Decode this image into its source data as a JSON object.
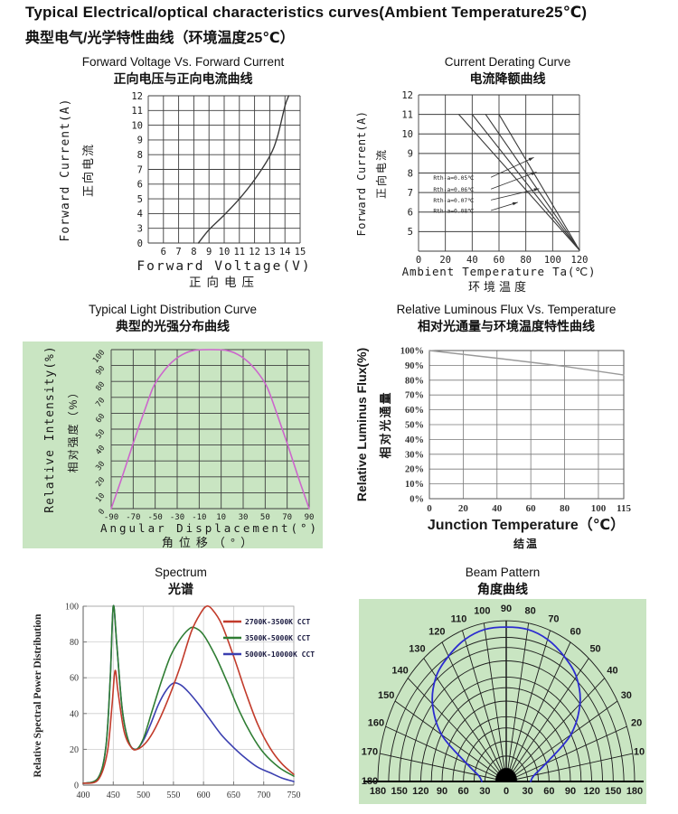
{
  "header": {
    "title_en": "Typical Electrical/optical characteristics curves(Ambient Temperature25℃)",
    "title_zh": "典型电气/光学特性曲线（环境温度25℃）"
  },
  "chart_data": [
    {
      "id": "fv-if",
      "type": "line",
      "title": "Forward Voltage Vs. Forward Current",
      "title_zh": "正向电压与正向电流曲线",
      "xlabel": "Forward Voltage(V)",
      "xlabel_zh": "正向电压",
      "ylabel": "Forward Current(A)",
      "ylabel_zh": "正向电流",
      "xlim": [
        5,
        15
      ],
      "x_ticks": [
        6,
        7,
        8,
        9,
        10,
        11,
        12,
        13,
        14,
        15
      ],
      "y_ticks": [
        0,
        3,
        4,
        5,
        6,
        7,
        8,
        9,
        10,
        11,
        12
      ],
      "y_scale": "tick-index",
      "series": [
        {
          "name": "forward-current",
          "color": "#3a3a3a",
          "smooth": true,
          "points": [
            [
              8.3,
              0
            ],
            [
              9,
              2.7
            ],
            [
              10,
              3.9
            ],
            [
              11,
              5.0
            ],
            [
              12,
              6.3
            ],
            [
              13,
              7.9
            ],
            [
              13.5,
              9.2
            ],
            [
              14,
              11.3
            ],
            [
              14.25,
              12
            ]
          ]
        }
      ]
    },
    {
      "id": "derating",
      "type": "line",
      "title": "Current Derating Curve",
      "title_zh": "电流降额曲线",
      "xlabel": "Ambient Temperature Ta(℃)",
      "xlabel_zh": "环境温度",
      "ylabel": "Forward Current(A)",
      "ylabel_zh": "正向电流",
      "xlim": [
        0,
        120
      ],
      "x_ticks": [
        0,
        20,
        40,
        60,
        80,
        100,
        120
      ],
      "ylim": [
        4,
        12
      ],
      "y_ticks": [
        5,
        6,
        7,
        8,
        9,
        10,
        11,
        12
      ],
      "series": [
        {
          "name": "rth-0.05",
          "color": "#3a3a3a",
          "points": [
            [
              30,
              11
            ],
            [
              120,
              4.05
            ]
          ]
        },
        {
          "name": "rth-0.06",
          "color": "#3a3a3a",
          "points": [
            [
              40,
              11
            ],
            [
              120,
              4.05
            ]
          ]
        },
        {
          "name": "rth-0.07",
          "color": "#3a3a3a",
          "points": [
            [
              50,
              11
            ],
            [
              120,
              4.05
            ]
          ]
        },
        {
          "name": "rth-0.08",
          "color": "#3a3a3a",
          "points": [
            [
              60,
              11
            ],
            [
              120,
              4.05
            ]
          ]
        }
      ],
      "annotations": [
        {
          "text": "Rth-a=0.05℃",
          "x": 11,
          "y": 7.75,
          "leader": [
            [
              54,
              7.78
            ],
            [
              86,
              8.8
            ]
          ]
        },
        {
          "text": "Rth-a=0.06℃",
          "x": 11,
          "y": 7.15,
          "leader": [
            [
              54,
              7.18
            ],
            [
              88,
              8.05
            ]
          ]
        },
        {
          "text": "Rth-a=0.07℃",
          "x": 11,
          "y": 6.6,
          "leader": [
            [
              54,
              6.62
            ],
            [
              90,
              7.2
            ]
          ]
        },
        {
          "text": "Rth-a=0.08℃",
          "x": 11,
          "y": 6.05,
          "leader": [
            [
              54,
              6.08
            ],
            [
              74,
              6.5
            ]
          ]
        }
      ]
    },
    {
      "id": "light-distribution",
      "type": "line",
      "title": "Typical Light Distribution Curve",
      "title_zh": "典型的光强分布曲线",
      "xlabel": "Angular Displacement(°)",
      "xlabel_zh": "角位移（°）",
      "ylabel": "Relative Intensity(%)",
      "ylabel_zh": "相对强度（%）",
      "panel_bg": "#c9e5c2",
      "xlim": [
        -90,
        90
      ],
      "x_ticks": [
        -90,
        -70,
        -50,
        -30,
        -10,
        10,
        30,
        50,
        70,
        90
      ],
      "ylim": [
        0,
        100
      ],
      "y_ticks": [
        0,
        10,
        20,
        30,
        40,
        50,
        60,
        70,
        80,
        90,
        100
      ],
      "series": [
        {
          "name": "relative-intensity",
          "color": "#cc66cc",
          "smooth": true,
          "points": [
            [
              -90,
              0
            ],
            [
              -80,
              20
            ],
            [
              -70,
              41
            ],
            [
              -60,
              61
            ],
            [
              -52,
              76
            ],
            [
              -45,
              84
            ],
            [
              -35,
              92
            ],
            [
              -25,
              97
            ],
            [
              -15,
              99.5
            ],
            [
              0,
              100
            ],
            [
              15,
              99.5
            ],
            [
              25,
              97
            ],
            [
              35,
              92
            ],
            [
              45,
              84
            ],
            [
              52,
              76
            ],
            [
              60,
              61
            ],
            [
              70,
              41
            ],
            [
              80,
              20
            ],
            [
              90,
              0
            ]
          ]
        }
      ]
    },
    {
      "id": "flux-temperature",
      "type": "line",
      "title": "Relative Luminous Flux Vs. Temperature",
      "title_zh": "相对光通量与环境温度特性曲线",
      "xlabel": "Junction Temperature（℃）",
      "xlabel_zh": "结温",
      "ylabel": "Relative Luminus Flux(%)",
      "ylabel_zh": "相对光通量",
      "xlim": [
        0,
        115
      ],
      "x_ticks": [
        0,
        20,
        40,
        60,
        80,
        100,
        115
      ],
      "ylim": [
        0,
        100
      ],
      "y_ticks": [
        0,
        10,
        20,
        30,
        40,
        50,
        60,
        70,
        80,
        90,
        100
      ],
      "y_suffix": "%",
      "series": [
        {
          "name": "relative-flux",
          "color": "#9a9a9a",
          "smooth": false,
          "points": [
            [
              0,
              100
            ],
            [
              40,
              94.8
            ],
            [
              80,
              89.3
            ],
            [
              115,
              83.5
            ]
          ]
        }
      ]
    },
    {
      "id": "spectrum",
      "type": "line",
      "title": "Spectrum",
      "title_zh": "光谱",
      "ylabel": "Relative Spectral Power Distribution",
      "xlim": [
        400,
        750
      ],
      "x_ticks": [
        400,
        450,
        500,
        550,
        600,
        650,
        700,
        750
      ],
      "ylim": [
        0,
        100
      ],
      "y_ticks": [
        0,
        20,
        40,
        60,
        80,
        100
      ],
      "legend": [
        {
          "label": "2700K-3500K CCT",
          "color": "#c23b2b"
        },
        {
          "label": "3500K-5000K CCT",
          "color": "#2f7d33"
        },
        {
          "label": "5000K-10000K CCT",
          "color": "#3a3fb0"
        }
      ],
      "series": [
        {
          "name": "cct-5000k-10000k",
          "color": "#3a3fb0",
          "smooth": true,
          "points": [
            [
              400,
              1
            ],
            [
              425,
              4
            ],
            [
              438,
              22
            ],
            [
              445,
              60
            ],
            [
              450,
              100
            ],
            [
              456,
              78
            ],
            [
              465,
              42
            ],
            [
              476,
              24
            ],
            [
              488,
              20
            ],
            [
              500,
              25
            ],
            [
              512,
              34
            ],
            [
              525,
              45
            ],
            [
              538,
              53
            ],
            [
              550,
              57
            ],
            [
              562,
              56
            ],
            [
              575,
              52
            ],
            [
              590,
              46
            ],
            [
              610,
              37
            ],
            [
              630,
              28
            ],
            [
              650,
              21
            ],
            [
              670,
              15
            ],
            [
              690,
              10
            ],
            [
              710,
              7
            ],
            [
              730,
              4
            ],
            [
              750,
              2
            ]
          ]
        },
        {
          "name": "cct-3500k-5000k",
          "color": "#2f7d33",
          "smooth": true,
          "points": [
            [
              400,
              1
            ],
            [
              425,
              4
            ],
            [
              438,
              22
            ],
            [
              445,
              60
            ],
            [
              450,
              100
            ],
            [
              456,
              78
            ],
            [
              465,
              42
            ],
            [
              476,
              24
            ],
            [
              488,
              20
            ],
            [
              500,
              26
            ],
            [
              515,
              42
            ],
            [
              530,
              58
            ],
            [
              545,
              72
            ],
            [
              560,
              81
            ],
            [
              575,
              87
            ],
            [
              585,
              88
            ],
            [
              600,
              84
            ],
            [
              620,
              72
            ],
            [
              640,
              57
            ],
            [
              660,
              41
            ],
            [
              680,
              28
            ],
            [
              700,
              18
            ],
            [
              725,
              10
            ],
            [
              750,
              5
            ]
          ]
        },
        {
          "name": "cct-2700k-3500k",
          "color": "#c23b2b",
          "smooth": true,
          "points": [
            [
              400,
              1
            ],
            [
              425,
              3
            ],
            [
              440,
              18
            ],
            [
              448,
              45
            ],
            [
              453,
              64
            ],
            [
              458,
              52
            ],
            [
              468,
              30
            ],
            [
              480,
              21
            ],
            [
              490,
              20
            ],
            [
              505,
              24
            ],
            [
              520,
              32
            ],
            [
              540,
              47
            ],
            [
              560,
              65
            ],
            [
              580,
              86
            ],
            [
              595,
              96
            ],
            [
              605,
              100
            ],
            [
              615,
              98
            ],
            [
              630,
              90
            ],
            [
              650,
              72
            ],
            [
              670,
              52
            ],
            [
              690,
              34
            ],
            [
              710,
              21
            ],
            [
              730,
              12
            ],
            [
              750,
              6
            ]
          ]
        }
      ]
    },
    {
      "id": "beam-pattern",
      "type": "polar",
      "title": "Beam Pattern",
      "title_zh": "角度曲线",
      "panel_bg": "#c9e5c2",
      "rings": 12,
      "radial_step_deg": 10,
      "angle_labels": [
        180,
        170,
        160,
        150,
        140,
        130,
        120,
        110,
        100,
        90,
        80,
        70,
        60,
        50,
        40,
        30,
        20,
        10
      ],
      "bottom_scale": [
        "180",
        "150",
        "120",
        "90",
        "60",
        "30",
        "0",
        "30",
        "60",
        "90",
        "120",
        "150",
        "180"
      ],
      "series": [
        {
          "name": "beam-intensity",
          "color": "#2b2bd0",
          "smooth": true,
          "points": [
            [
              0,
              19
            ],
            [
              10,
              22
            ],
            [
              20,
              33
            ],
            [
              30,
              58
            ],
            [
              40,
              75
            ],
            [
              50,
              85
            ],
            [
              60,
              90
            ],
            [
              70,
              94
            ],
            [
              80,
              96
            ],
            [
              90,
              96
            ],
            [
              100,
              96
            ],
            [
              110,
              94
            ],
            [
              120,
              90
            ],
            [
              130,
              85
            ],
            [
              140,
              75
            ],
            [
              150,
              58
            ],
            [
              160,
              33
            ],
            [
              170,
              22
            ],
            [
              180,
              19
            ]
          ]
        }
      ]
    }
  ]
}
